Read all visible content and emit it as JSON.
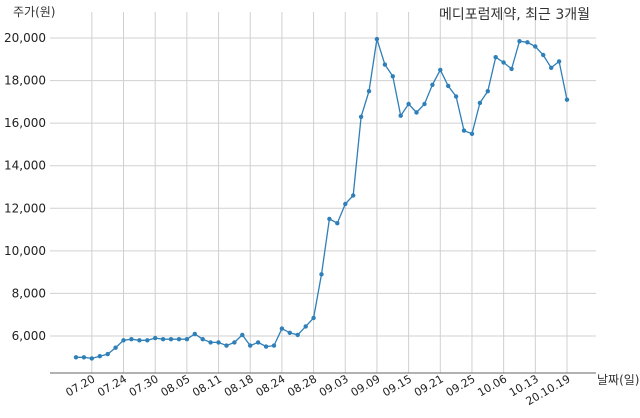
{
  "chart_data": {
    "type": "line",
    "title": "메디포럼제약, 최근 3개월",
    "ylabel": "주가(원)",
    "xlabel": "날짜(일)",
    "ylim": [
      4200,
      20400
    ],
    "yticks": [
      6000,
      8000,
      10000,
      12000,
      14000,
      16000,
      18000,
      20000
    ],
    "ytick_labels": [
      "6,000",
      "8,000",
      "10,000",
      "12,000",
      "14,000",
      "16,000",
      "18,000",
      "20,000"
    ],
    "xticks": [
      {
        "index": 2,
        "label": "07.20"
      },
      {
        "index": 6,
        "label": "07.24"
      },
      {
        "index": 10,
        "label": "07.30"
      },
      {
        "index": 14,
        "label": "08.05"
      },
      {
        "index": 18,
        "label": "08.11"
      },
      {
        "index": 22,
        "label": "08.18"
      },
      {
        "index": 26,
        "label": "08.24"
      },
      {
        "index": 30,
        "label": "08.28"
      },
      {
        "index": 34,
        "label": "09.03"
      },
      {
        "index": 38,
        "label": "09.09"
      },
      {
        "index": 42,
        "label": "09.15"
      },
      {
        "index": 46,
        "label": "09.21"
      },
      {
        "index": 50,
        "label": "09.25"
      },
      {
        "index": 54,
        "label": "10.06"
      },
      {
        "index": 58,
        "label": "10.13"
      },
      {
        "index": 62,
        "label": "20.10.19"
      }
    ],
    "grid": true,
    "color": "#2f7fb8",
    "series": [
      {
        "values": [
          5000,
          5000,
          4950,
          5050,
          5150,
          5450,
          5800,
          5850,
          5800,
          5800,
          5900,
          5850,
          5850,
          5850,
          5850,
          6100,
          5850,
          5700,
          5700,
          5550,
          5700,
          6050,
          5550,
          5700,
          5500,
          5550,
          6350,
          6150,
          6050,
          6450,
          6850,
          8900,
          11500,
          11300,
          12200,
          12600,
          16300,
          17500,
          19950,
          18750,
          18200,
          16350,
          16900,
          16500,
          16900,
          17800,
          18500,
          17750,
          17250,
          15650,
          15500,
          16950,
          17500,
          19100,
          18850,
          18550,
          19850,
          19800,
          19600,
          19200,
          18600,
          18900,
          17100
        ]
      }
    ]
  }
}
